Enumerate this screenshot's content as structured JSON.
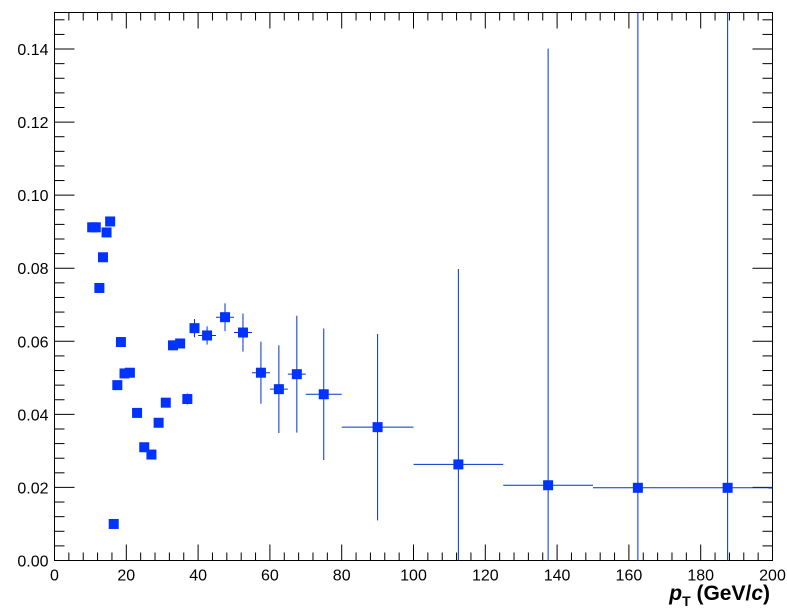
{
  "chart_data": {
    "type": "scatter",
    "title": "",
    "xlabel": "p_T (GeV/c)",
    "xlabel_parts": {
      "main": "p",
      "sub": "T",
      "units_open": " (GeV/",
      "units_italic": "c",
      "units_close": ")"
    },
    "ylabel": "",
    "xlim": [
      0,
      200
    ],
    "ylim": [
      0,
      0.15
    ],
    "xticks": [
      0,
      20,
      40,
      60,
      80,
      100,
      120,
      140,
      160,
      180,
      200
    ],
    "xtick_labels": [
      "0",
      "20",
      "40",
      "60",
      "80",
      "100",
      "120",
      "140",
      "160",
      "180",
      "200"
    ],
    "yticks": [
      0.0,
      0.02,
      0.04,
      0.06,
      0.08,
      0.1,
      0.12,
      0.14
    ],
    "ytick_labels": [
      "0.00",
      "0.02",
      "0.04",
      "0.06",
      "0.08",
      "0.10",
      "0.12",
      "0.14"
    ],
    "grid": false,
    "legend": "none",
    "marker_color": "#0033ff",
    "errorbar_color": "#0033cc",
    "series": [
      {
        "points": [
          {
            "x": 10.5,
            "xerr": 0.5,
            "y": 0.0912,
            "yerr": 0
          },
          {
            "x": 11.5,
            "xerr": 0.5,
            "y": 0.0912,
            "yerr": 0
          },
          {
            "x": 12.5,
            "xerr": 0.5,
            "y": 0.0746,
            "yerr": 0
          },
          {
            "x": 13.5,
            "xerr": 0.5,
            "y": 0.083,
            "yerr": 0
          },
          {
            "x": 14.5,
            "xerr": 0.5,
            "y": 0.0898,
            "yerr": 0
          },
          {
            "x": 15.5,
            "xerr": 0.5,
            "y": 0.0928,
            "yerr": 0
          },
          {
            "x": 16.5,
            "xerr": 0.5,
            "y": 0.01,
            "yerr": 0
          },
          {
            "x": 17.5,
            "xerr": 0.5,
            "y": 0.048,
            "yerr": 0
          },
          {
            "x": 18.5,
            "xerr": 0.5,
            "y": 0.0598,
            "yerr": 0
          },
          {
            "x": 19.5,
            "xerr": 0.5,
            "y": 0.0512,
            "yerr": 0
          },
          {
            "x": 21.0,
            "xerr": 1.0,
            "y": 0.0514,
            "yerr": 0
          },
          {
            "x": 23.0,
            "xerr": 1.0,
            "y": 0.0404,
            "yerr": 0
          },
          {
            "x": 25.0,
            "xerr": 1.0,
            "y": 0.031,
            "yerr": 0
          },
          {
            "x": 27.0,
            "xerr": 1.0,
            "y": 0.029,
            "yerr": 0
          },
          {
            "x": 29.0,
            "xerr": 1.0,
            "y": 0.0377,
            "yerr": 0
          },
          {
            "x": 31.0,
            "xerr": 1.0,
            "y": 0.0432,
            "yerr": 0
          },
          {
            "x": 33.0,
            "xerr": 1.0,
            "y": 0.0589,
            "yerr": 0
          },
          {
            "x": 35.0,
            "xerr": 1.0,
            "y": 0.0594,
            "yerr": 0
          },
          {
            "x": 37.0,
            "xerr": 1.0,
            "y": 0.0442,
            "yerr": 0.0015
          },
          {
            "x": 39.0,
            "xerr": 1.0,
            "y": 0.0636,
            "yerr": 0.0025
          },
          {
            "x": 42.5,
            "xerr": 2.5,
            "y": 0.0616,
            "yerr": 0.0025
          },
          {
            "x": 47.5,
            "xerr": 2.5,
            "y": 0.0666,
            "yerr": 0.0038
          },
          {
            "x": 52.5,
            "xerr": 2.5,
            "y": 0.0624,
            "yerr": 0.0052
          },
          {
            "x": 57.5,
            "xerr": 2.5,
            "y": 0.0514,
            "yerr": 0.0085
          },
          {
            "x": 62.5,
            "xerr": 2.5,
            "y": 0.0469,
            "yerr": 0.012
          },
          {
            "x": 67.5,
            "xerr": 2.5,
            "y": 0.051,
            "yerr": 0.016
          },
          {
            "x": 75.0,
            "xerr": 5.0,
            "y": 0.0455,
            "yerr": 0.018
          },
          {
            "x": 90.0,
            "xerr": 10.0,
            "y": 0.0365,
            "yerr": 0.0255
          },
          {
            "x": 112.5,
            "xerr": 12.5,
            "y": 0.0263,
            "yerr": 0.0535
          },
          {
            "x": 137.5,
            "xerr": 12.5,
            "y": 0.0206,
            "yerr": 0.1195
          },
          {
            "x": 162.5,
            "xerr": 12.5,
            "y": 0.0199,
            "yerr": 0.2
          },
          {
            "x": 187.5,
            "xerr": 12.5,
            "y": 0.0199,
            "yerr": 0.2
          }
        ]
      }
    ]
  }
}
